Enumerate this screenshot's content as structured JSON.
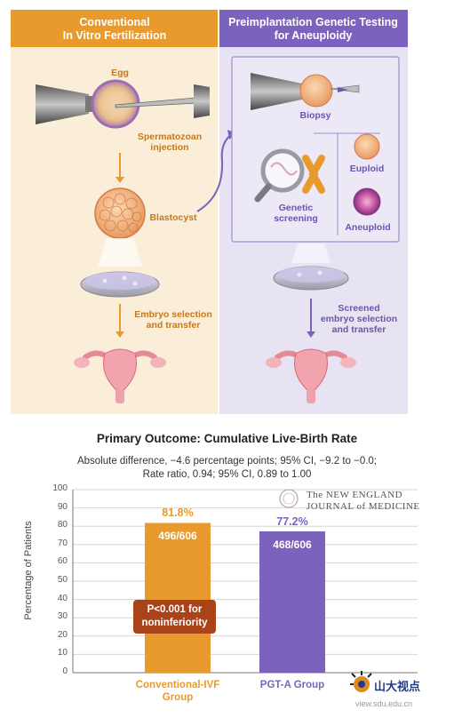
{
  "diagram": {
    "left_column": {
      "title_line1": "Conventional",
      "title_line2": "In Vitro Fertilization",
      "egg_label": "Egg",
      "injection_label_1": "Spermatozoan",
      "injection_label_2": "injection",
      "blastocyst_label": "Blastocyst",
      "transfer_label_1": "Embryo selection",
      "transfer_label_2": "and transfer"
    },
    "right_column": {
      "title_line1": "Preimplantation Genetic Testing",
      "title_line2": "for Aneuploidy",
      "biopsy_label": "Biopsy",
      "screening_label_1": "Genetic",
      "screening_label_2": "screening",
      "euploid_label": "Euploid",
      "aneuploid_label": "Aneuploid",
      "transfer_label_1": "Screened",
      "transfer_label_2": "embryo selection",
      "transfer_label_3": "and transfer"
    },
    "colors": {
      "orange": "#e99a2c",
      "purple": "#7b63bd",
      "orange_bg": "#fbeed9",
      "purple_bg": "#e7e3f2"
    }
  },
  "chart_data": {
    "type": "bar",
    "title": "Primary Outcome: Cumulative Live-Birth Rate",
    "subtitle_line1": "Absolute difference, −4.6 percentage points; 95% CI, −9.2 to −0.0;",
    "subtitle_line2": "Rate ratio, 0.94; 95% CI, 0.89 to 1.00",
    "ylabel": "Percentage of Patients",
    "ylim": [
      0,
      100
    ],
    "yticks": [
      "0",
      "10",
      "20",
      "30",
      "40",
      "50",
      "60",
      "70",
      "80",
      "90",
      "100"
    ],
    "categories": [
      "Conventional-IVF Group",
      "PGT-A Group"
    ],
    "category_lines": [
      [
        "Conventional-IVF",
        "Group"
      ],
      [
        "PGT-A Group"
      ]
    ],
    "values": [
      81.8,
      77.2
    ],
    "value_labels": [
      "81.8%",
      "77.2%"
    ],
    "fractions": [
      "496/606",
      "468/606"
    ],
    "bar_colors": [
      "#e99a2c",
      "#7b63bd"
    ],
    "annotation_line1": "P<0.001 for",
    "annotation_line2": "noninferiority"
  },
  "branding": {
    "nejm_line1": "The NEW ENGLAND",
    "nejm_line2": "JOURNAL of MEDICINE",
    "watermark_text": "山大视点",
    "watermark_url": "view.sdu.edu.cn"
  }
}
